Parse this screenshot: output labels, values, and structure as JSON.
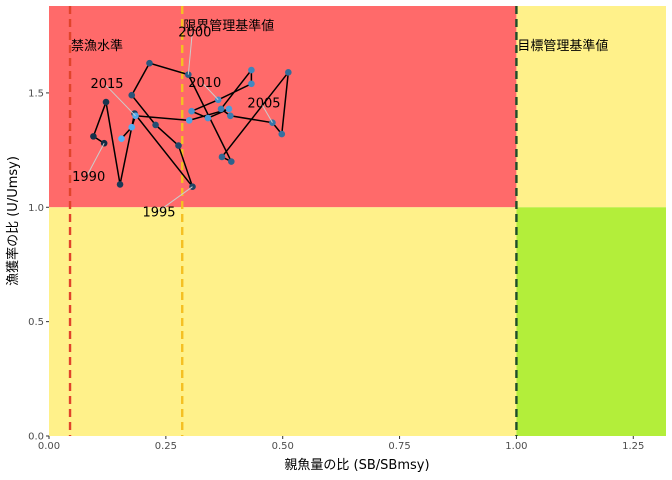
{
  "chart_data": {
    "type": "scatter",
    "xlabel": "親魚量の比 (SB/SBmsy)",
    "ylabel": "漁獲率の比 (U/Umsy)",
    "xlim": [
      0,
      1.32
    ],
    "ylim": [
      0,
      1.88
    ],
    "x_ticks": [
      0,
      0.25,
      0.5,
      0.75,
      1.0,
      1.25
    ],
    "x_tick_labels": [
      "0.00",
      "0.25",
      "0.50",
      "0.75",
      "1.00",
      "1.25"
    ],
    "y_ticks": [
      0,
      0.5,
      1.0,
      1.5
    ],
    "y_tick_labels": [
      "0.0",
      "0.5",
      "1.0",
      "1.5"
    ],
    "grid": false,
    "zones": [
      {
        "name": "red",
        "x": [
          0,
          1.0
        ],
        "y": [
          1.0,
          1.88
        ],
        "color": "#FF6A6A"
      },
      {
        "name": "yellow-left-low",
        "x": [
          0,
          1.0
        ],
        "y": [
          0,
          1.0
        ],
        "color": "#FFF18A"
      },
      {
        "name": "yellow-right-high",
        "x": [
          1.0,
          1.32
        ],
        "y": [
          1.0,
          1.88
        ],
        "color": "#FFF18A"
      },
      {
        "name": "green",
        "x": [
          1.0,
          1.32
        ],
        "y": [
          0,
          1.0
        ],
        "color": "#B3EE3A"
      }
    ],
    "reference_lines": [
      {
        "label": "禁漁水準",
        "x": 0.045,
        "color": "#E0442B"
      },
      {
        "label": "限界管理基準値",
        "x": 0.285,
        "color": "#F5C022"
      },
      {
        "label": "目標管理基準値",
        "x": 1.0,
        "color": "#1F4D2B"
      }
    ],
    "series": [
      {
        "years": [
          1990,
          1991,
          1992,
          1993,
          1994,
          1995,
          1996,
          1997,
          1998,
          1999,
          2000,
          2001,
          2002,
          2003,
          2004,
          2005,
          2006,
          2007,
          2008,
          2009,
          2010,
          2011,
          2012,
          2013,
          2014,
          2015,
          2016,
          2017
        ],
        "x": [
          0.118,
          0.095,
          0.122,
          0.152,
          0.183,
          0.307,
          0.277,
          0.228,
          0.177,
          0.215,
          0.298,
          0.39,
          0.37,
          0.512,
          0.498,
          0.478,
          0.388,
          0.368,
          0.433,
          0.433,
          0.362,
          0.305,
          0.34,
          0.385,
          0.3,
          0.185,
          0.177,
          0.155
        ],
        "y": [
          1.28,
          1.31,
          1.46,
          1.1,
          1.41,
          1.09,
          1.27,
          1.36,
          1.49,
          1.63,
          1.58,
          1.2,
          1.22,
          1.59,
          1.32,
          1.37,
          1.4,
          1.43,
          1.6,
          1.54,
          1.47,
          1.42,
          1.39,
          1.43,
          1.38,
          1.4,
          1.35,
          1.3
        ]
      }
    ],
    "year_labels": [
      {
        "text": "1990",
        "year": 1990
      },
      {
        "text": "1995",
        "year": 1995
      },
      {
        "text": "2000",
        "year": 2000
      },
      {
        "text": "2005",
        "year": 2005
      },
      {
        "text": "2010",
        "year": 2010
      },
      {
        "text": "2015",
        "year": 2015
      }
    ],
    "colors": {
      "line": "#000000",
      "point_old": "#132B43",
      "point_new": "#56B1F7"
    }
  }
}
